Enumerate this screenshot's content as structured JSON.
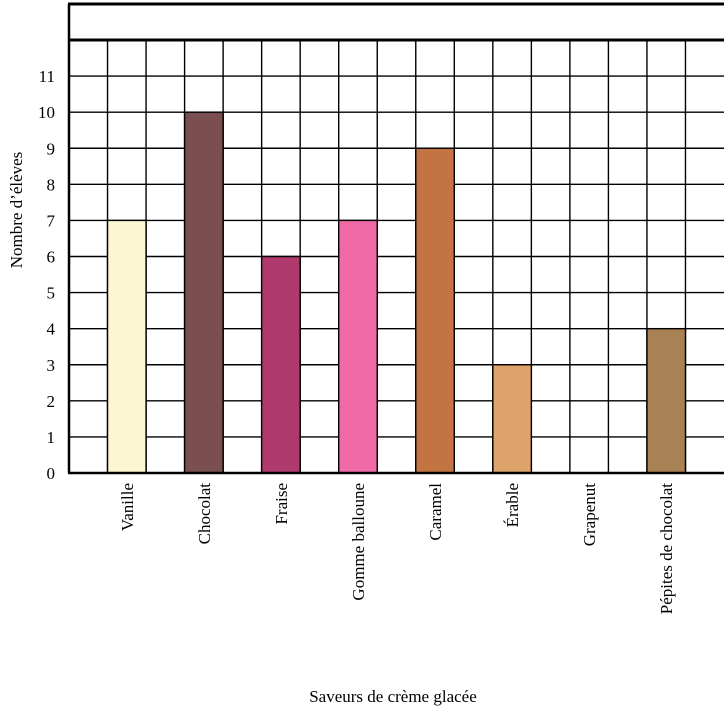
{
  "chart_data": {
    "type": "bar",
    "title": "",
    "xlabel": "Saveurs de crème glacée",
    "ylabel": "Nombre d’élèves",
    "ylim": [
      0,
      11
    ],
    "yticks": [
      0,
      1,
      2,
      3,
      4,
      5,
      6,
      7,
      8,
      9,
      10,
      11
    ],
    "grid": true,
    "legend": "none",
    "categories": [
      "Vanille",
      "Chocolat",
      "Fraise",
      "Gomme balloune",
      "Caramel",
      "Érable",
      "Grapenut",
      "Pépites de chocolat"
    ],
    "values": [
      7,
      10,
      6,
      7,
      9,
      3,
      0,
      4
    ],
    "colors": [
      "#fdf6d2",
      "#7b4f50",
      "#b03a6e",
      "#f06aa8",
      "#c27542",
      "#dca36b",
      "#ffffff",
      "#a88154"
    ]
  }
}
